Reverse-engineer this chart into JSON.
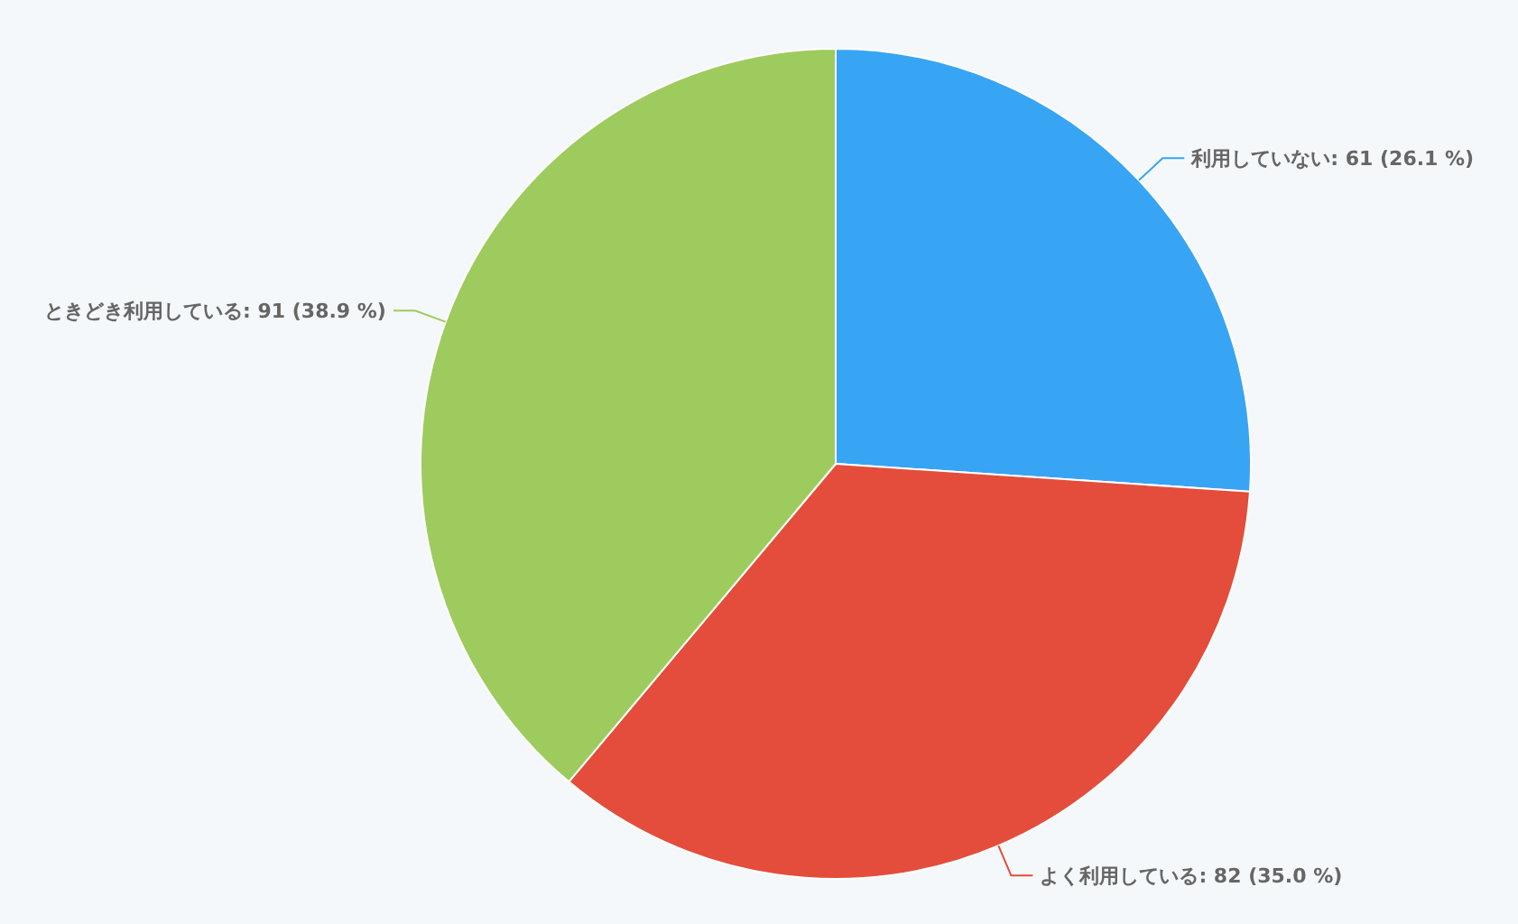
{
  "chart_data": {
    "type": "pie",
    "categories": [
      "利用していない",
      "よく利用している",
      "ときどき利用している"
    ],
    "values": [
      61,
      82,
      91
    ],
    "value_labels": [
      "61 (26.1 %)",
      "82 (35.0 %)",
      "91 (38.9 %)"
    ],
    "colors": [
      "#38a4f4",
      "#e44d3b",
      "#9ecb5d"
    ],
    "legend": false
  }
}
